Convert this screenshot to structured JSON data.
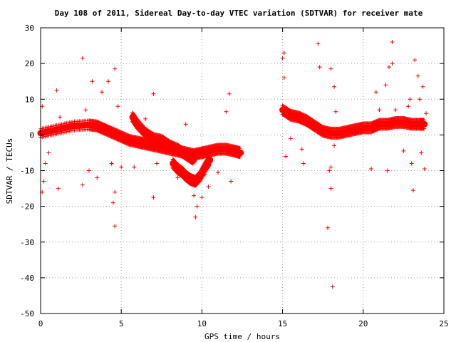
{
  "chart_data": {
    "type": "scatter",
    "title": "Day 108 of 2011, Sidereal Day-to-day VTEC variation (SDTVAR) for receiver mate",
    "xlabel": "GPS time / hours",
    "ylabel": "SDTVAR / TECUs",
    "xlim": [
      0,
      25
    ],
    "ylim": [
      -50,
      30
    ],
    "xticks": [
      0,
      5,
      10,
      15,
      20,
      25
    ],
    "yticks": [
      -50,
      -40,
      -30,
      -20,
      -10,
      0,
      10,
      20,
      30
    ],
    "grid": true,
    "marker": "+",
    "color": "#ff0000",
    "trends": [
      {
        "x": [
          0.0,
          1.0,
          2.0,
          3.0,
          3.5,
          4.0,
          4.5,
          5.0,
          5.5,
          6.0,
          6.5,
          7.0,
          7.5,
          8.0,
          8.5,
          9.0,
          9.5,
          10.0,
          10.5,
          11.0,
          11.5,
          12.0,
          12.4
        ],
        "y": [
          0.5,
          1.5,
          2.5,
          2.8,
          2.5,
          1.5,
          0.5,
          -0.5,
          -1.5,
          -2.0,
          -2.5,
          -3.0,
          -3.5,
          -4.0,
          -4.5,
          -5.0,
          -5.5,
          -5.0,
          -4.5,
          -4.0,
          -4.0,
          -4.5,
          -5.0
        ]
      },
      {
        "x": [
          5.7,
          6.0,
          6.5,
          7.0,
          7.5,
          8.0,
          8.5,
          9.0,
          9.5
        ],
        "y": [
          5.0,
          3.0,
          0.5,
          -1.0,
          -1.5,
          -3.0,
          -4.0,
          -5.5,
          -7.0
        ]
      },
      {
        "x": [
          8.2,
          8.5,
          8.8,
          9.0,
          9.3,
          9.6,
          9.9,
          10.2,
          10.5
        ],
        "y": [
          -8.0,
          -9.5,
          -10.5,
          -11.5,
          -12.5,
          -13.0,
          -11.5,
          -9.0,
          -7.0
        ]
      },
      {
        "x": [
          15.0,
          15.5,
          16.0,
          16.5,
          17.0,
          17.5,
          18.0,
          18.5,
          19.0,
          19.5,
          20.0,
          20.5,
          21.0,
          21.5,
          22.0,
          22.5,
          23.0,
          23.5,
          23.8
        ],
        "y": [
          7.0,
          5.5,
          5.0,
          4.0,
          2.5,
          1.0,
          0.5,
          0.5,
          1.0,
          1.5,
          2.0,
          2.0,
          3.0,
          3.0,
          3.5,
          3.5,
          3.0,
          3.0,
          3.0
        ]
      }
    ],
    "points": [
      {
        "x": 0.1,
        "y": 8.0
      },
      {
        "x": 0.1,
        "y": -16.0
      },
      {
        "x": 0.2,
        "y": -13.0
      },
      {
        "x": 0.3,
        "y": -8.0
      },
      {
        "x": 0.5,
        "y": -5.0
      },
      {
        "x": 1.0,
        "y": 12.5
      },
      {
        "x": 1.1,
        "y": -15.0
      },
      {
        "x": 1.2,
        "y": 5.0
      },
      {
        "x": 2.6,
        "y": 21.5
      },
      {
        "x": 2.6,
        "y": -14.0
      },
      {
        "x": 2.8,
        "y": 7.0
      },
      {
        "x": 3.0,
        "y": -10.0
      },
      {
        "x": 3.2,
        "y": 15.0
      },
      {
        "x": 3.5,
        "y": -12.0
      },
      {
        "x": 3.8,
        "y": 12.0
      },
      {
        "x": 4.2,
        "y": 15.0
      },
      {
        "x": 4.4,
        "y": -8.0
      },
      {
        "x": 4.5,
        "y": -19.0
      },
      {
        "x": 4.6,
        "y": 18.5
      },
      {
        "x": 4.6,
        "y": -16.0
      },
      {
        "x": 4.6,
        "y": -25.5
      },
      {
        "x": 4.8,
        "y": 8.0
      },
      {
        "x": 5.0,
        "y": -9.0
      },
      {
        "x": 5.8,
        "y": -9.0
      },
      {
        "x": 6.5,
        "y": 4.5
      },
      {
        "x": 7.0,
        "y": 11.5
      },
      {
        "x": 7.0,
        "y": -17.5
      },
      {
        "x": 7.2,
        "y": -8.0
      },
      {
        "x": 8.5,
        "y": -12.0
      },
      {
        "x": 9.0,
        "y": 3.0
      },
      {
        "x": 9.5,
        "y": -17.0
      },
      {
        "x": 9.6,
        "y": -23.0
      },
      {
        "x": 9.7,
        "y": -20.0
      },
      {
        "x": 10.0,
        "y": -17.5
      },
      {
        "x": 10.2,
        "y": -11.0
      },
      {
        "x": 10.4,
        "y": -14.5
      },
      {
        "x": 11.0,
        "y": -10.5
      },
      {
        "x": 11.5,
        "y": 6.5
      },
      {
        "x": 11.7,
        "y": 11.5
      },
      {
        "x": 11.8,
        "y": -13.0
      },
      {
        "x": 15.0,
        "y": 21.5
      },
      {
        "x": 15.1,
        "y": 23.0
      },
      {
        "x": 15.1,
        "y": 16.0
      },
      {
        "x": 15.2,
        "y": -6.0
      },
      {
        "x": 15.5,
        "y": -1.0
      },
      {
        "x": 16.2,
        "y": -4.0
      },
      {
        "x": 16.3,
        "y": -8.0
      },
      {
        "x": 17.2,
        "y": 25.5
      },
      {
        "x": 17.3,
        "y": 19.0
      },
      {
        "x": 17.8,
        "y": -26.0
      },
      {
        "x": 18.0,
        "y": -15.0
      },
      {
        "x": 18.1,
        "y": -42.5
      },
      {
        "x": 18.0,
        "y": 18.5
      },
      {
        "x": 18.2,
        "y": 13.5
      },
      {
        "x": 18.2,
        "y": -3.0
      },
      {
        "x": 18.3,
        "y": 6.5
      },
      {
        "x": 17.9,
        "y": -10.0
      },
      {
        "x": 18.0,
        "y": -9.0
      },
      {
        "x": 20.5,
        "y": -9.5
      },
      {
        "x": 20.8,
        "y": 12.0
      },
      {
        "x": 21.0,
        "y": 7.0
      },
      {
        "x": 21.5,
        "y": -10.0
      },
      {
        "x": 21.6,
        "y": 19.0
      },
      {
        "x": 21.8,
        "y": 26.0
      },
      {
        "x": 21.8,
        "y": 20.0
      },
      {
        "x": 21.4,
        "y": 14.0
      },
      {
        "x": 22.0,
        "y": 7.0
      },
      {
        "x": 22.5,
        "y": -4.5
      },
      {
        "x": 22.8,
        "y": 8.0
      },
      {
        "x": 22.9,
        "y": 10.0
      },
      {
        "x": 23.0,
        "y": -8.0
      },
      {
        "x": 23.1,
        "y": -15.5
      },
      {
        "x": 23.2,
        "y": 21.0
      },
      {
        "x": 23.4,
        "y": 16.5
      },
      {
        "x": 23.5,
        "y": 10.0
      },
      {
        "x": 23.6,
        "y": -5.0
      },
      {
        "x": 23.7,
        "y": 13.5
      },
      {
        "x": 23.8,
        "y": -9.5
      },
      {
        "x": 23.9,
        "y": 6.0
      }
    ]
  }
}
